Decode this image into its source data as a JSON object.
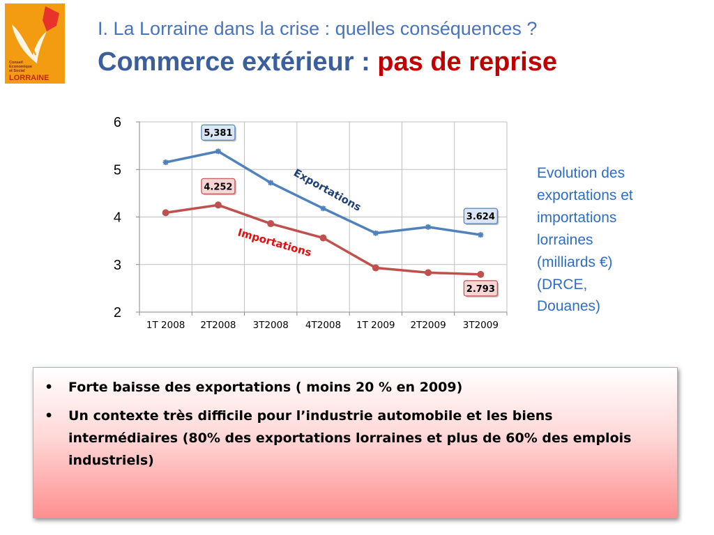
{
  "header": {
    "logo_text": [
      "Conseil",
      "Economique",
      "et Social",
      "LORRAINE"
    ],
    "subtitle": "I. La Lorraine dans la crise : quelles conséquences ?",
    "title_main": "Commerce extérieur : ",
    "title_accent": "pas de reprise"
  },
  "chart_data": {
    "type": "line",
    "categories": [
      "1T 2008",
      "2T2008",
      "3T2008",
      "4T2008",
      "1T 2009",
      "2T2009",
      "3T2009"
    ],
    "ylim": [
      2,
      6
    ],
    "yticks": [
      "2",
      "3",
      "4",
      "5",
      "6"
    ],
    "grid": true,
    "series": [
      {
        "name": "Exportations",
        "values": [
          5.15,
          5.381,
          4.72,
          4.18,
          3.66,
          3.79,
          3.624
        ],
        "color": "#4f81bd"
      },
      {
        "name": "Importations",
        "values": [
          4.09,
          4.252,
          3.86,
          3.56,
          2.93,
          2.83,
          2.793
        ],
        "color": "#c0504d"
      }
    ],
    "annotations": [
      {
        "series": 0,
        "index": 1,
        "text": "5,381",
        "fill": "#dbe5f5",
        "stroke": "#4f81bd"
      },
      {
        "series": 0,
        "index": 6,
        "text": "3.624",
        "fill": "#dbe5f5",
        "stroke": "#4f81bd"
      },
      {
        "series": 1,
        "index": 1,
        "text": "4.252",
        "fill": "#f7d6d5",
        "stroke": "#c0504d"
      },
      {
        "series": 1,
        "index": 6,
        "text": "2.793",
        "fill": "#f7d6d5",
        "stroke": "#c0504d"
      }
    ]
  },
  "side_note": [
    "Evolution des",
    "exportations et",
    "importations",
    "lorraines",
    "(milliards €)",
    "(DRCE,",
    "Douanes)"
  ],
  "bullets": [
    "Forte  baisse des exportations ( moins 20 % en 2009)",
    "Un contexte très difficile pour l’industrie automobile et les biens intermédiaires  (80% des exportations lorraines et plus de 60% des emplois industriels)"
  ],
  "bullet_symbol": "•",
  "colors": {
    "title_blue": "#3b5f9c",
    "title_red": "#c00000",
    "note_blue": "#2f6dc2"
  }
}
